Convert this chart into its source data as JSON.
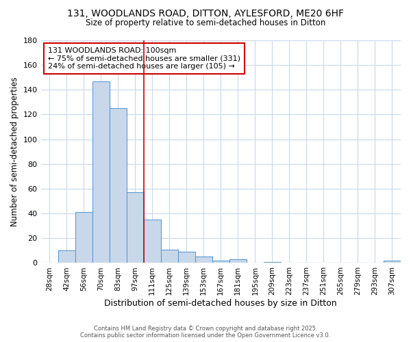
{
  "title_line1": "131, WOODLANDS ROAD, DITTON, AYLESFORD, ME20 6HF",
  "title_line2": "Size of property relative to semi-detached houses in Ditton",
  "xlabel": "Distribution of semi-detached houses by size in Ditton",
  "ylabel": "Number of semi-detached properties",
  "categories": [
    "28sqm",
    "42sqm",
    "56sqm",
    "70sqm",
    "83sqm",
    "97sqm",
    "111sqm",
    "125sqm",
    "139sqm",
    "153sqm",
    "167sqm",
    "181sqm",
    "195sqm",
    "209sqm",
    "223sqm",
    "237sqm",
    "251sqm",
    "265sqm",
    "279sqm",
    "293sqm",
    "307sqm"
  ],
  "values": [
    0,
    10,
    41,
    147,
    125,
    57,
    35,
    11,
    9,
    5,
    2,
    3,
    0,
    1,
    0,
    0,
    0,
    0,
    0,
    0,
    2
  ],
  "bar_color": "#c8d8ea",
  "bar_edge_color": "#5b9bd5",
  "grid_color": "#c8d8ea",
  "vline_x_index": 5,
  "vline_color": "#cc0000",
  "annotation_text": "131 WOODLANDS ROAD: 100sqm\n← 75% of semi-detached houses are smaller (331)\n24% of semi-detached houses are larger (105) →",
  "annotation_box_color": "#ffffff",
  "annotation_border_color": "#cc0000",
  "footer_line1": "Contains HM Land Registry data © Crown copyright and database right 2025.",
  "footer_line2": "Contains public sector information licensed under the Open Government Licence v3.0.",
  "ylim": [
    0,
    180
  ],
  "background_color": "#ffffff",
  "plot_bg_color": "#ffffff"
}
